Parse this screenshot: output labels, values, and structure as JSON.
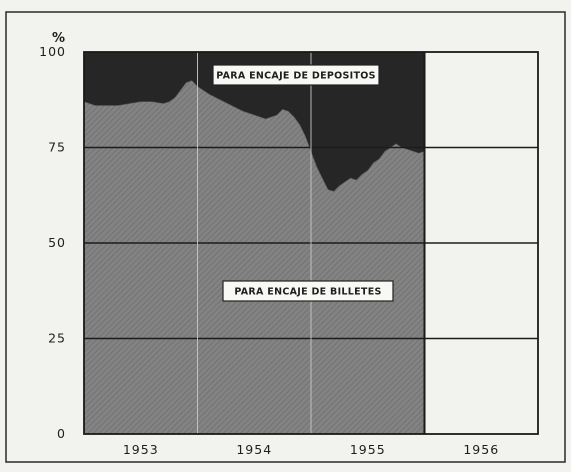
{
  "chart_data": {
    "type": "area",
    "y_unit": "%",
    "ylim": [
      0,
      100
    ],
    "yticks": [
      0,
      25,
      50,
      75,
      100
    ],
    "xticks": [
      "1953",
      "1954",
      "1955",
      "1956"
    ],
    "x_range": [
      1953.0,
      1957.0
    ],
    "data_end": 1956.0,
    "grid": true,
    "series": [
      {
        "name": "PARA ENCAJE DE BILLETES",
        "x": [
          1953.0,
          1953.1,
          1953.2,
          1953.3,
          1953.4,
          1953.5,
          1953.6,
          1953.7,
          1953.75,
          1953.8,
          1953.85,
          1953.9,
          1953.95,
          1954.0,
          1954.1,
          1954.2,
          1954.3,
          1954.4,
          1954.5,
          1954.6,
          1954.7,
          1954.75,
          1954.8,
          1954.85,
          1954.9,
          1954.95,
          1955.0,
          1955.05,
          1955.1,
          1955.15,
          1955.2,
          1955.25,
          1955.3,
          1955.35,
          1955.4,
          1955.45,
          1955.5,
          1955.55,
          1955.6,
          1955.65,
          1955.7,
          1955.75,
          1955.8,
          1955.85,
          1955.9,
          1955.95,
          1956.0
        ],
        "values": [
          87,
          86,
          86,
          86,
          86.5,
          87,
          87,
          86.5,
          87,
          88,
          90,
          92,
          92.5,
          91,
          89,
          87.5,
          86,
          84.5,
          83.5,
          82.5,
          83.5,
          85,
          84.5,
          83,
          81,
          78,
          74,
          70,
          67,
          64,
          63.5,
          65,
          66,
          67,
          66.5,
          68,
          69,
          71,
          72,
          74,
          75,
          76,
          75,
          74.5,
          74,
          73.5,
          74
        ]
      },
      {
        "name": "PARA ENCAJE DE DEPOSITOS"
      }
    ]
  },
  "colors": {
    "billetes_fill": "#7d7d7d",
    "depositos_fill": "#262626",
    "grid": "#1c1c1c",
    "paper": "#f2f2ee"
  }
}
